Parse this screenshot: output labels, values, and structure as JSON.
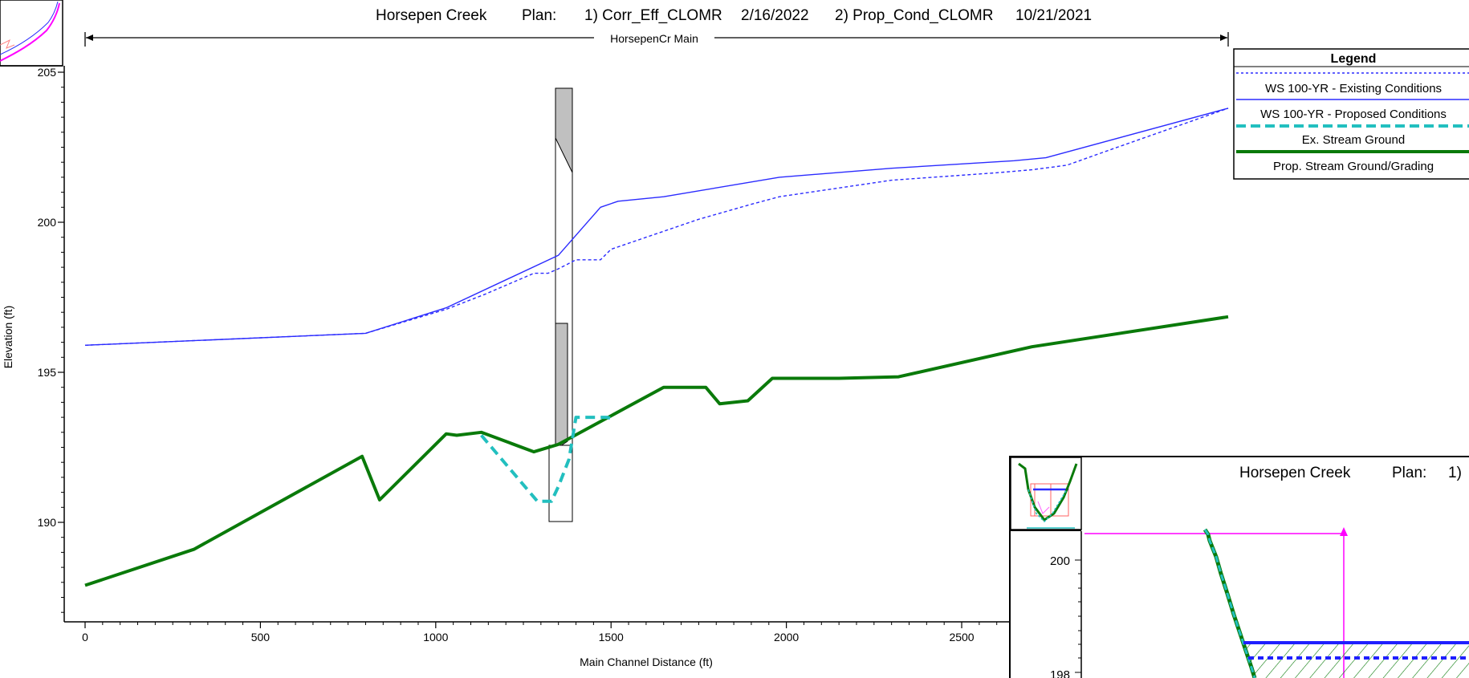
{
  "header": {
    "title_river": "Horsepen Creek",
    "plan_label": "Plan:",
    "plan1": "1) Corr_Eff_CLOMR",
    "plan1_date": "2/16/2022",
    "plan2": "2) Prop_Cond_CLOMR",
    "plan2_date": "10/21/2021",
    "reach_label": "HorsepenCr Main"
  },
  "legend": {
    "title": "Legend",
    "items": [
      {
        "label": "WS  100-YR - Existing Conditions",
        "color": "#2b2bff",
        "style": "dotted"
      },
      {
        "label": "WS  100-YR - Proposed Conditions",
        "color": "#2b2bff",
        "style": "solid"
      },
      {
        "label": "Ex. Stream Ground",
        "color": "#22bfbf",
        "style": "dashed"
      },
      {
        "label": "Prop. Stream Ground/Grading",
        "color": "#0a7a0a",
        "style": "solid-thick"
      }
    ]
  },
  "chart_data": {
    "type": "line",
    "title": "Horsepen Creek       Plan:     1) Corr_Eff_CLOMR    2/16/2022     2) Prop_Cond_CLOMR    10/21/2021",
    "xlabel": "Main Channel Distance (ft)",
    "ylabel": "Elevation (ft)",
    "xlim": [
      -60,
      2920
    ],
    "ylim": [
      186.6,
      205.2
    ],
    "x_ticks": [
      0,
      500,
      1000,
      1500,
      2000,
      2500
    ],
    "y_ticks": [
      190,
      195,
      200,
      205
    ],
    "series": [
      {
        "name": "WS  100-YR - Existing Conditions",
        "color": "#2b2bff",
        "style": "dotted",
        "x": [
          0,
          800,
          1030,
          1140,
          1280,
          1320,
          1350,
          1400,
          1470,
          1500,
          1600,
          1750,
          1900,
          1980,
          2300,
          2600,
          2700,
          2800,
          2920,
          3260
        ],
        "y": [
          195.9,
          196.3,
          197.1,
          197.6,
          198.3,
          198.3,
          198.45,
          198.75,
          198.75,
          199.1,
          199.5,
          200.1,
          200.6,
          200.85,
          201.4,
          201.65,
          201.75,
          201.9,
          202.4,
          203.8
        ]
      },
      {
        "name": "WS  100-YR - Proposed Conditions",
        "color": "#2b2bff",
        "style": "solid",
        "x": [
          0,
          800,
          1030,
          1350,
          1470,
          1520,
          1650,
          1980,
          2300,
          2650,
          2740,
          3260
        ],
        "y": [
          195.9,
          196.3,
          197.15,
          198.9,
          200.5,
          200.7,
          200.85,
          201.5,
          201.8,
          202.05,
          202.15,
          203.8
        ]
      },
      {
        "name": "Ex. Stream Ground",
        "color": "#22bfbf",
        "style": "dashed",
        "x": [
          1130,
          1290,
          1330,
          1350,
          1380,
          1400,
          1490,
          1510
        ],
        "y": [
          192.9,
          190.7,
          190.7,
          191.2,
          192.1,
          193.5,
          193.5,
          193.4
        ]
      },
      {
        "name": "Prop. Stream Ground/Grading",
        "color": "#0a7a0a",
        "style": "solid-thick",
        "x": [
          0,
          310,
          790,
          840,
          1030,
          1060,
          1130,
          1280,
          1350,
          1500,
          1650,
          1770,
          1810,
          1890,
          1960,
          2150,
          2320,
          2700,
          3260
        ],
        "y": [
          187.9,
          189.1,
          192.2,
          190.75,
          192.95,
          192.9,
          193.0,
          192.35,
          192.6,
          193.55,
          194.5,
          194.5,
          193.95,
          194.05,
          194.8,
          194.8,
          194.85,
          195.85,
          196.85
        ]
      }
    ]
  },
  "inset": {
    "title_river": "Horsepen Creek",
    "plan_label": "Plan:",
    "plan_partial": "1)",
    "y_tick_top": "200",
    "y_tick_bottom": "198"
  }
}
